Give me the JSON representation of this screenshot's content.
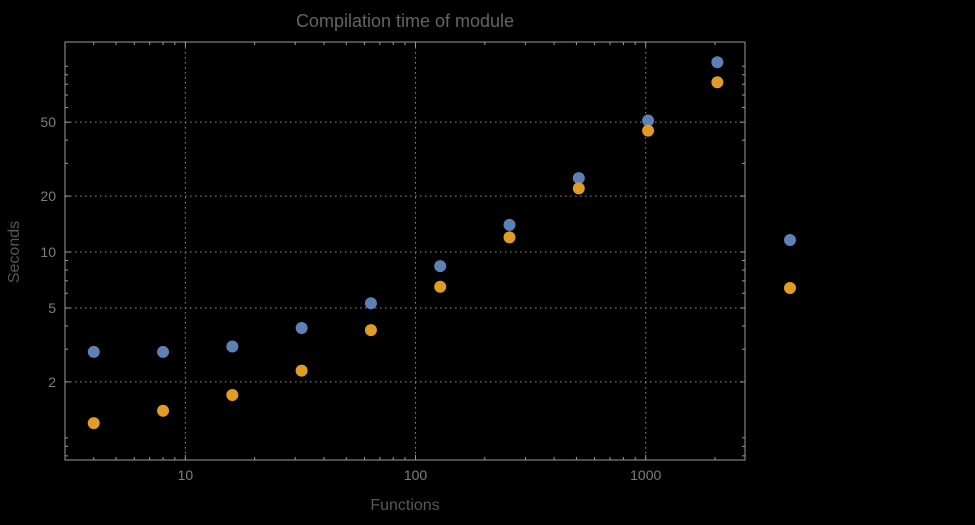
{
  "chart": {
    "colors": {
      "background": "#000000",
      "frame": "#9b9b9b",
      "grid": "#8a8a8a",
      "title": "#646464",
      "axis_label": "#585858",
      "tick_label": "#7d7d7d",
      "series1": "#5e81b5",
      "series2": "#e19c24"
    }
  },
  "chart_data": {
    "type": "scatter",
    "title": "Compilation time of module",
    "xlabel": "Functions",
    "ylabel": "Seconds",
    "x_scale": "log",
    "y_scale": "log",
    "x": [
      4,
      8,
      16,
      32,
      64,
      128,
      256,
      512,
      1024,
      2048
    ],
    "series": [
      {
        "name": "blue",
        "color": "#5e81b5",
        "values": [
          2.9,
          2.9,
          3.1,
          3.9,
          5.3,
          8.4,
          14,
          25,
          51,
          105
        ]
      },
      {
        "name": "orange",
        "color": "#e19c24",
        "values": [
          1.2,
          1.4,
          1.7,
          2.3,
          3.8,
          6.5,
          12,
          22,
          45,
          82
        ]
      }
    ],
    "x_ticks": [
      10,
      100,
      1000
    ],
    "y_ticks": [
      2,
      5,
      10,
      20,
      50
    ],
    "x_range": [
      3,
      2700
    ],
    "y_range": [
      0.76,
      135
    ],
    "grid": "dotted",
    "legend_position": "right"
  },
  "legend": {
    "markers": [
      {
        "series": "blue",
        "color": "#5e81b5"
      },
      {
        "series": "orange",
        "color": "#e19c24"
      }
    ]
  }
}
